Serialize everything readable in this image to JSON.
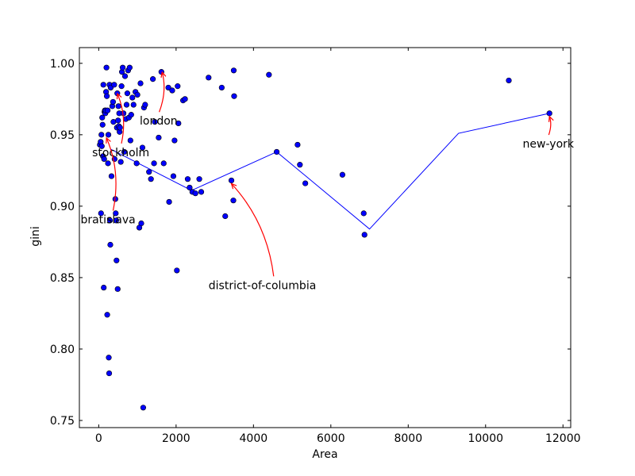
{
  "chart_data": {
    "type": "scatter",
    "xlabel": "Area",
    "ylabel": "gini",
    "xlim": [
      -500,
      12200
    ],
    "ylim": [
      0.745,
      1.011
    ],
    "x_ticks": [
      0,
      2000,
      4000,
      6000,
      8000,
      10000,
      12000
    ],
    "y_ticks": [
      0.75,
      0.8,
      0.85,
      0.9,
      0.95,
      1.0
    ],
    "x_tick_labels": [
      "0",
      "2000",
      "4000",
      "6000",
      "8000",
      "10000",
      "12000"
    ],
    "y_tick_labels": [
      "0.75",
      "0.80",
      "0.85",
      "0.90",
      "0.95",
      "1.00"
    ],
    "grid": false,
    "colors": {
      "points": "#0000ff",
      "point_edge": "#000000",
      "line": "#0000ff",
      "arrows": "#ff0000"
    },
    "series": [
      {
        "type": "scatter",
        "points": [
          [
            30,
            0.943
          ],
          [
            50,
            0.945
          ],
          [
            60,
            0.895
          ],
          [
            70,
            0.95
          ],
          [
            80,
            0.942
          ],
          [
            90,
            0.962
          ],
          [
            100,
            0.957
          ],
          [
            110,
            0.935
          ],
          [
            120,
            0.985
          ],
          [
            130,
            0.843
          ],
          [
            140,
            0.933
          ],
          [
            150,
            0.966
          ],
          [
            160,
            0.967
          ],
          [
            170,
            0.965
          ],
          [
            180,
            0.967
          ],
          [
            190,
            0.98
          ],
          [
            200,
            0.997
          ],
          [
            210,
            0.977
          ],
          [
            220,
            0.824
          ],
          [
            230,
            0.967
          ],
          [
            240,
            0.93
          ],
          [
            250,
            0.95
          ],
          [
            260,
            0.794
          ],
          [
            270,
            0.783
          ],
          [
            280,
            0.985
          ],
          [
            290,
            0.89
          ],
          [
            300,
            0.873
          ],
          [
            310,
            0.983
          ],
          [
            330,
            0.921
          ],
          [
            350,
            0.97
          ],
          [
            370,
            0.973
          ],
          [
            380,
            0.959
          ],
          [
            400,
            0.985
          ],
          [
            410,
            0.933
          ],
          [
            430,
            0.905
          ],
          [
            440,
            0.895
          ],
          [
            450,
            0.89
          ],
          [
            460,
            0.862
          ],
          [
            470,
            0.955
          ],
          [
            480,
            0.979
          ],
          [
            490,
            0.842
          ],
          [
            500,
            0.96
          ],
          [
            510,
            0.97
          ],
          [
            520,
            0.956
          ],
          [
            530,
            0.965
          ],
          [
            540,
            0.952
          ],
          [
            550,
            0.955
          ],
          [
            570,
            0.931
          ],
          [
            590,
            0.984
          ],
          [
            600,
            0.994
          ],
          [
            620,
            0.997
          ],
          [
            640,
            0.965
          ],
          [
            660,
            0.938
          ],
          [
            680,
            0.991
          ],
          [
            700,
            0.961
          ],
          [
            720,
            0.971
          ],
          [
            740,
            0.979
          ],
          [
            760,
            0.995
          ],
          [
            780,
            0.962
          ],
          [
            800,
            0.997
          ],
          [
            820,
            0.946
          ],
          [
            840,
            0.964
          ],
          [
            870,
            0.976
          ],
          [
            900,
            0.971
          ],
          [
            950,
            0.98
          ],
          [
            980,
            0.93
          ],
          [
            1000,
            0.978
          ],
          [
            1050,
            0.885
          ],
          [
            1080,
            0.986
          ],
          [
            1100,
            0.888
          ],
          [
            1130,
            0.941
          ],
          [
            1150,
            0.759
          ],
          [
            1170,
            0.969
          ],
          [
            1200,
            0.971
          ],
          [
            1300,
            0.924
          ],
          [
            1350,
            0.919
          ],
          [
            1400,
            0.989
          ],
          [
            1430,
            0.93
          ],
          [
            1450,
            0.959
          ],
          [
            1550,
            0.948
          ],
          [
            1620,
            0.994
          ],
          [
            1680,
            0.93
          ],
          [
            1800,
            0.983
          ],
          [
            1820,
            0.903
          ],
          [
            1900,
            0.981
          ],
          [
            1930,
            0.921
          ],
          [
            1960,
            0.946
          ],
          [
            2020,
            0.855
          ],
          [
            2040,
            0.984
          ],
          [
            2060,
            0.958
          ],
          [
            2180,
            0.974
          ],
          [
            2230,
            0.975
          ],
          [
            2300,
            0.919
          ],
          [
            2350,
            0.913
          ],
          [
            2420,
            0.91
          ],
          [
            2500,
            0.909
          ],
          [
            2600,
            0.919
          ],
          [
            2650,
            0.91
          ],
          [
            2840,
            0.99
          ],
          [
            3180,
            0.983
          ],
          [
            3270,
            0.893
          ],
          [
            3430,
            0.918
          ],
          [
            3480,
            0.904
          ],
          [
            3490,
            0.995
          ],
          [
            3500,
            0.977
          ],
          [
            4400,
            0.992
          ],
          [
            4600,
            0.938
          ],
          [
            5140,
            0.943
          ],
          [
            5200,
            0.929
          ],
          [
            5340,
            0.916
          ],
          [
            6300,
            0.922
          ],
          [
            6850,
            0.895
          ],
          [
            6870,
            0.88
          ],
          [
            10600,
            0.988
          ],
          [
            11650,
            0.965
          ]
        ]
      },
      {
        "type": "line",
        "points": [
          [
            300,
            0.94
          ],
          [
            2400,
            0.911
          ],
          [
            4600,
            0.938
          ],
          [
            7000,
            0.884
          ],
          [
            9300,
            0.951
          ],
          [
            11650,
            0.965
          ]
        ]
      }
    ],
    "annotations": [
      {
        "text": "london",
        "target": [
          1640,
          0.996
        ],
        "text_pos": [
          1060,
          0.957
        ]
      },
      {
        "text": "stockholm",
        "target": [
          480,
          0.981
        ],
        "text_pos": [
          -170,
          0.935
        ]
      },
      {
        "text": "bratislava",
        "target": [
          200,
          0.95
        ],
        "text_pos": [
          -470,
          0.888
        ]
      },
      {
        "text": "district-of-columbia",
        "target": [
          3430,
          0.918
        ],
        "text_pos": [
          2840,
          0.842
        ]
      },
      {
        "text": "new-york",
        "target": [
          11650,
          0.965
        ],
        "text_pos": [
          10960,
          0.941
        ]
      }
    ]
  }
}
